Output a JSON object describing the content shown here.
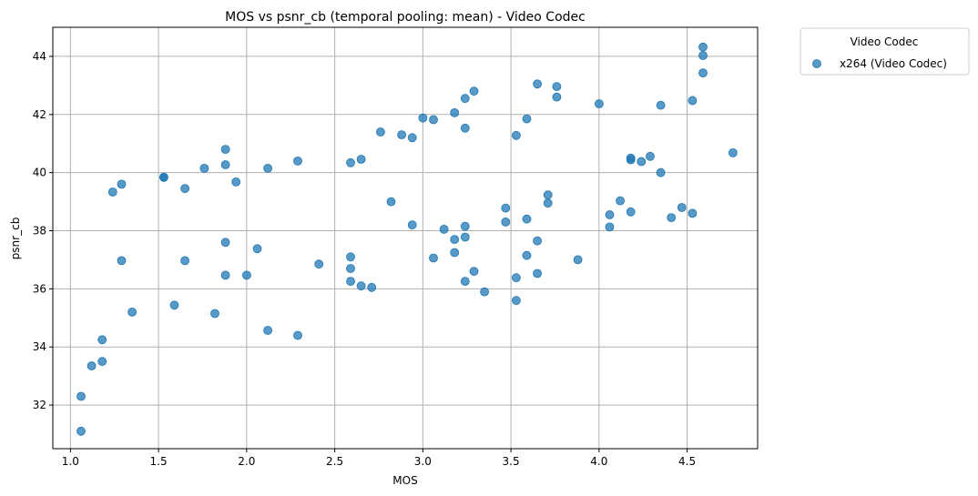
{
  "chart_data": {
    "type": "scatter",
    "title": "MOS vs psnr_cb (temporal pooling: mean) - Video Codec",
    "xlabel": "MOS",
    "ylabel": "psnr_cb",
    "xlim": [
      0.9,
      4.9
    ],
    "ylim": [
      30.5,
      45.0
    ],
    "xticks": [
      1.0,
      1.5,
      2.0,
      2.5,
      3.0,
      3.5,
      4.0,
      4.5
    ],
    "xtick_labels": [
      "1.0",
      "1.5",
      "2.0",
      "2.5",
      "3.0",
      "3.5",
      "4.0",
      "4.5"
    ],
    "yticks": [
      32,
      34,
      36,
      38,
      40,
      42,
      44
    ],
    "ytick_labels": [
      "32",
      "34",
      "36",
      "38",
      "40",
      "42",
      "44"
    ],
    "grid": true,
    "legend": {
      "title": "Video Codec",
      "position": "outside-top-right",
      "entries": [
        "x264 (Video Codec)"
      ]
    },
    "series": [
      {
        "name": "x264 (Video Codec)",
        "color": "#1f77b4",
        "points": [
          [
            1.06,
            31.1
          ],
          [
            1.06,
            32.3
          ],
          [
            1.12,
            33.35
          ],
          [
            1.18,
            33.5
          ],
          [
            1.18,
            34.25
          ],
          [
            1.24,
            39.33
          ],
          [
            1.29,
            39.6
          ],
          [
            1.29,
            36.97
          ],
          [
            1.35,
            35.2
          ],
          [
            1.53,
            39.84
          ],
          [
            1.53,
            39.84
          ],
          [
            1.59,
            35.44
          ],
          [
            1.65,
            36.97
          ],
          [
            1.65,
            39.45
          ],
          [
            1.76,
            40.15
          ],
          [
            1.82,
            35.15
          ],
          [
            1.88,
            40.8
          ],
          [
            1.88,
            40.27
          ],
          [
            1.88,
            37.6
          ],
          [
            1.88,
            36.47
          ],
          [
            1.94,
            39.68
          ],
          [
            2.0,
            36.47
          ],
          [
            2.06,
            37.38
          ],
          [
            2.12,
            40.15
          ],
          [
            2.12,
            34.57
          ],
          [
            2.29,
            40.4
          ],
          [
            2.29,
            34.4
          ],
          [
            2.41,
            36.85
          ],
          [
            2.59,
            40.34
          ],
          [
            2.59,
            37.1
          ],
          [
            2.59,
            36.7
          ],
          [
            2.59,
            36.26
          ],
          [
            2.65,
            40.46
          ],
          [
            2.65,
            36.1
          ],
          [
            2.71,
            36.05
          ],
          [
            2.76,
            41.4
          ],
          [
            2.82,
            39.0
          ],
          [
            2.88,
            41.3
          ],
          [
            2.94,
            41.2
          ],
          [
            2.94,
            38.2
          ],
          [
            3.0,
            41.88
          ],
          [
            3.06,
            41.82
          ],
          [
            3.06,
            37.06
          ],
          [
            3.12,
            38.05
          ],
          [
            3.18,
            42.06
          ],
          [
            3.18,
            37.7
          ],
          [
            3.18,
            37.25
          ],
          [
            3.24,
            42.55
          ],
          [
            3.24,
            41.53
          ],
          [
            3.24,
            38.15
          ],
          [
            3.24,
            37.78
          ],
          [
            3.24,
            36.26
          ],
          [
            3.29,
            42.8
          ],
          [
            3.29,
            36.6
          ],
          [
            3.35,
            35.9
          ],
          [
            3.47,
            38.78
          ],
          [
            3.47,
            38.3
          ],
          [
            3.53,
            41.28
          ],
          [
            3.53,
            36.38
          ],
          [
            3.53,
            35.6
          ],
          [
            3.59,
            41.85
          ],
          [
            3.59,
            38.4
          ],
          [
            3.59,
            37.15
          ],
          [
            3.65,
            43.05
          ],
          [
            3.65,
            37.65
          ],
          [
            3.65,
            36.53
          ],
          [
            3.71,
            39.23
          ],
          [
            3.71,
            38.95
          ],
          [
            3.76,
            42.96
          ],
          [
            3.76,
            42.6
          ],
          [
            3.88,
            37.0
          ],
          [
            4.0,
            42.37
          ],
          [
            4.06,
            38.55
          ],
          [
            4.06,
            38.13
          ],
          [
            4.12,
            39.03
          ],
          [
            4.18,
            40.5
          ],
          [
            4.18,
            40.44
          ],
          [
            4.18,
            38.65
          ],
          [
            4.24,
            40.38
          ],
          [
            4.29,
            40.56
          ],
          [
            4.35,
            42.32
          ],
          [
            4.35,
            40.0
          ],
          [
            4.41,
            38.45
          ],
          [
            4.47,
            38.8
          ],
          [
            4.53,
            42.48
          ],
          [
            4.53,
            38.6
          ],
          [
            4.59,
            44.32
          ],
          [
            4.59,
            44.03
          ],
          [
            4.59,
            43.43
          ],
          [
            4.76,
            40.68
          ]
        ]
      }
    ]
  }
}
